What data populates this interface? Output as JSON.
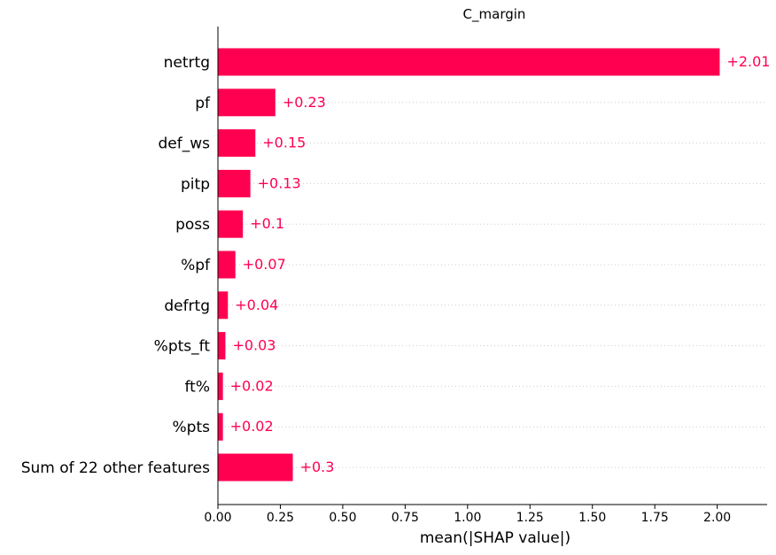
{
  "chart_data": {
    "type": "bar",
    "orientation": "horizontal",
    "title": "C_margin",
    "xlabel": "mean(|SHAP value|)",
    "ylabel": "",
    "xlim": [
      0,
      2.2
    ],
    "x_ticks": [
      0,
      0.25,
      0.5,
      0.75,
      1.0,
      1.25,
      1.5,
      1.75,
      2.0
    ],
    "x_tick_labels": [
      "0.00",
      "0.25",
      "0.50",
      "0.75",
      "1.00",
      "1.25",
      "1.50",
      "1.75",
      "2.00"
    ],
    "categories": [
      "netrtg",
      "pf",
      "def_ws",
      "pitp",
      "poss",
      "%pf",
      "defrtg",
      "%pts_ft",
      "ft%",
      "%pts",
      "Sum of 22 other features"
    ],
    "values": [
      2.01,
      0.23,
      0.15,
      0.13,
      0.1,
      0.07,
      0.04,
      0.03,
      0.02,
      0.02,
      0.3
    ],
    "value_labels": [
      "+2.01",
      "+0.23",
      "+0.15",
      "+0.13",
      "+0.1",
      "+0.07",
      "+0.04",
      "+0.03",
      "+0.02",
      "+0.02",
      "+0.3"
    ],
    "grid": "horizontal dotted",
    "colors": {
      "bar": "#ff0051",
      "label": "#ff0051",
      "axis": "#000000",
      "grid": "#cccccc"
    }
  }
}
